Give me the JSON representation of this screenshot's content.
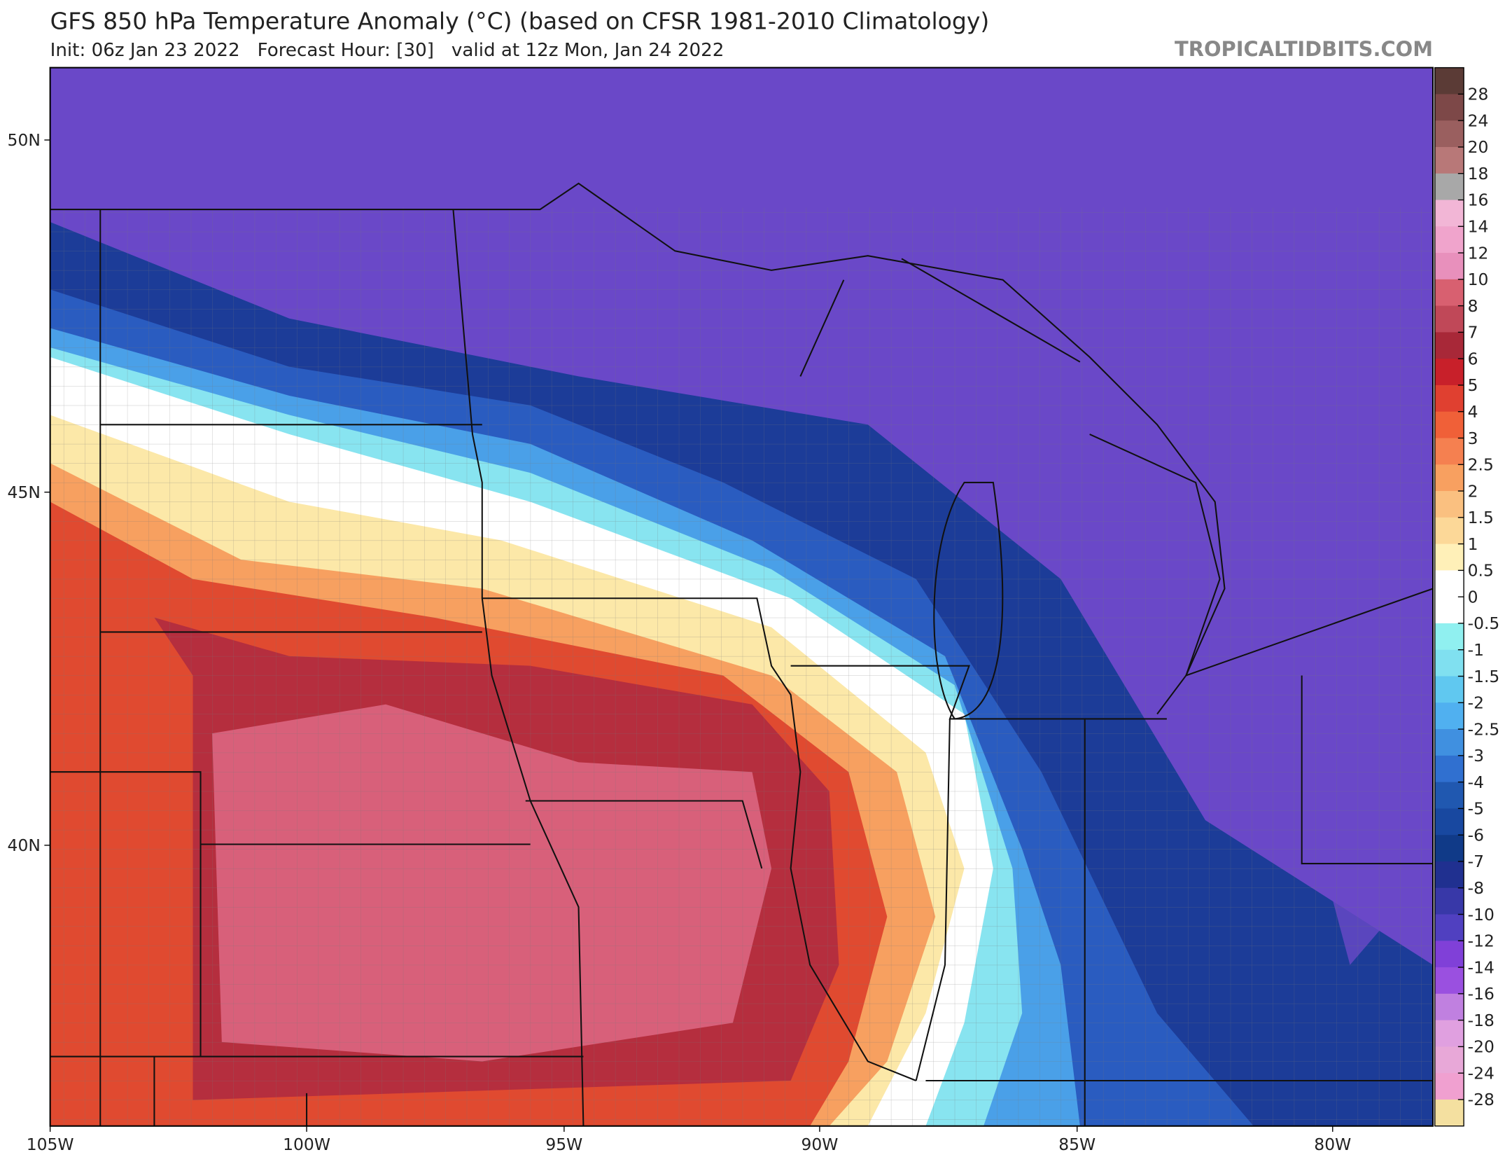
{
  "header": {
    "title": "GFS 850 hPa Temperature Anomaly (°C) (based on CFSR 1981-2010 Climatology)",
    "subtitle": "Init: 06z Jan 23 2022   Forecast Hour: [30]   valid at 12z Mon, Jan 24 2022",
    "brand": "TROPICALTIDBITS.COM"
  },
  "map": {
    "lat_labels": [
      "50N",
      "45N",
      "40N"
    ],
    "lon_labels": [
      "105W",
      "100W",
      "95W",
      "90W",
      "85W",
      "80W"
    ]
  },
  "colorbar": {
    "labels": [
      "28",
      "24",
      "20",
      "18",
      "16",
      "14",
      "12",
      "10",
      "8",
      "7",
      "6",
      "5",
      "4",
      "3",
      "2.5",
      "2",
      "1.5",
      "1",
      "0.5",
      "0",
      "-0.5",
      "-1",
      "-1.5",
      "-2",
      "-2.5",
      "-3",
      "-4",
      "-5",
      "-6",
      "-7",
      "-8",
      "-10",
      "-12",
      "-14",
      "-16",
      "-18",
      "-20",
      "-24",
      "-28"
    ],
    "colors": [
      "#5b3b36",
      "#7d4848",
      "#9a5f5f",
      "#b87878",
      "#a8a8a8",
      "#f2b6d6",
      "#f0a4cc",
      "#e890bc",
      "#d86070",
      "#c04858",
      "#a82838",
      "#c8202a",
      "#e04030",
      "#f06038",
      "#f58050",
      "#f8a060",
      "#fac080",
      "#fcd898",
      "#fff0b8",
      "#ffffff",
      "#ffffff",
      "#90f0f0",
      "#80e0f0",
      "#60c8f0",
      "#50b0f0",
      "#4090e0",
      "#3070d0",
      "#2058b0",
      "#1848a0",
      "#103a88",
      "#203090",
      "#3838a8",
      "#5040c0",
      "#8040d8",
      "#9a50e0",
      "#c080e0",
      "#e0a0e0",
      "#e8a8d8",
      "#f0a0d0",
      "#f4e0a0"
    ]
  }
}
